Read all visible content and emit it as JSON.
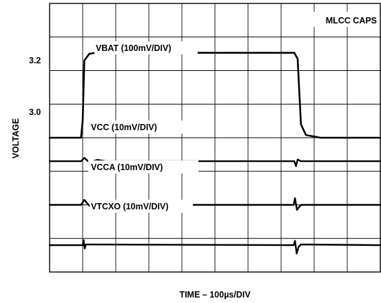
{
  "chart_data": {
    "type": "line",
    "title": "",
    "annotation": "MLCC CAPS",
    "xlabel": "TIME – 100µs/DIV",
    "ylabel": "VOLTAGE",
    "y_tick_labels": [
      "3.2",
      "3.0"
    ],
    "grid": true,
    "x_divisions": 10,
    "y_divisions": 8,
    "x_units": "divisions (100µs/DIV)",
    "y_units": "divisions",
    "x_range": [
      0,
      10
    ],
    "y_range": [
      0,
      8
    ],
    "series": [
      {
        "name": "VBAT (100mV/DIV)",
        "points": [
          [
            0,
            4
          ],
          [
            0.95,
            4
          ],
          [
            1.0,
            4.5
          ],
          [
            1.05,
            6.3
          ],
          [
            1.2,
            6.5
          ],
          [
            1.4,
            6.53
          ],
          [
            7.4,
            6.53
          ],
          [
            7.5,
            6.35
          ],
          [
            7.6,
            4.4
          ],
          [
            7.75,
            4.08
          ],
          [
            8.2,
            4.0
          ],
          [
            10,
            4.0
          ]
        ]
      },
      {
        "name": "VCC (10mV/DIV)",
        "points": [
          [
            0,
            3.3
          ],
          [
            0.95,
            3.3
          ],
          [
            1.05,
            3.4
          ],
          [
            1.2,
            3.27
          ],
          [
            1.45,
            3.34
          ],
          [
            1.7,
            3.3
          ],
          [
            7.4,
            3.3
          ],
          [
            7.45,
            3.15
          ],
          [
            7.5,
            3.35
          ],
          [
            7.6,
            3.3
          ],
          [
            10,
            3.3
          ]
        ]
      },
      {
        "name": "VCCA (10mV/DIV)",
        "points": [
          [
            0,
            2.0
          ],
          [
            0.95,
            2.0
          ],
          [
            1.05,
            2.15
          ],
          [
            1.25,
            1.92
          ],
          [
            1.5,
            2.05
          ],
          [
            1.75,
            2.0
          ],
          [
            7.38,
            2.0
          ],
          [
            7.42,
            2.2
          ],
          [
            7.48,
            1.85
          ],
          [
            7.6,
            2.0
          ],
          [
            10,
            2.0
          ]
        ]
      },
      {
        "name": "VTCXO (10mV/DIV)",
        "points": [
          [
            0,
            0.8
          ],
          [
            1.0,
            0.8
          ],
          [
            1.03,
            0.95
          ],
          [
            1.06,
            0.7
          ],
          [
            1.1,
            0.82
          ],
          [
            7.38,
            0.8
          ],
          [
            7.42,
            0.93
          ],
          [
            7.47,
            0.55
          ],
          [
            7.53,
            0.75
          ],
          [
            7.6,
            0.82
          ],
          [
            10,
            0.8
          ]
        ]
      }
    ]
  }
}
